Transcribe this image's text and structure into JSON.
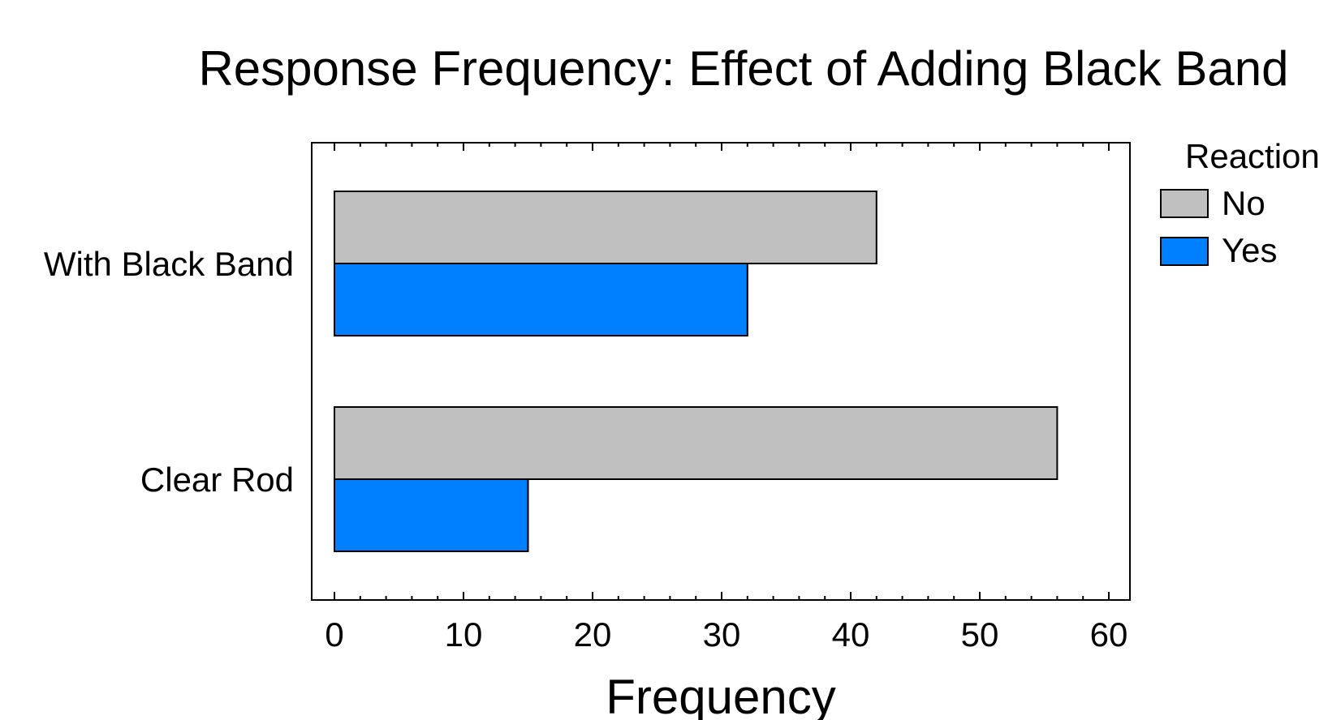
{
  "chart_data": {
    "type": "bar",
    "orientation": "horizontal",
    "title": "Response Frequency: Effect of Adding Black Band",
    "xlabel": "Frequency",
    "ylabel": "",
    "categories": [
      "With Black Band",
      "Clear Rod"
    ],
    "series": [
      {
        "name": "No",
        "values": [
          42,
          56
        ],
        "color": "#c0c0c0"
      },
      {
        "name": "Yes",
        "values": [
          32,
          15
        ],
        "color": "#0080ff"
      }
    ],
    "xlim": [
      0,
      60
    ],
    "xticks": [
      "0",
      "10",
      "20",
      "30",
      "40",
      "50",
      "60"
    ],
    "legend": {
      "title": "Reaction",
      "position": "right"
    },
    "grid": false
  }
}
